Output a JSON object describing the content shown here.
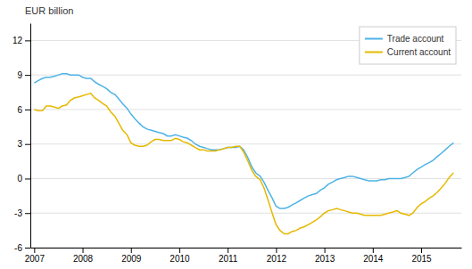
{
  "chart_data": {
    "type": "line",
    "ylabel": "EUR billion",
    "x": [
      2007.0,
      2007.08,
      2007.17,
      2007.25,
      2007.33,
      2007.42,
      2007.5,
      2007.58,
      2007.67,
      2007.75,
      2007.83,
      2007.92,
      2008.0,
      2008.08,
      2008.17,
      2008.25,
      2008.33,
      2008.42,
      2008.5,
      2008.58,
      2008.67,
      2008.75,
      2008.83,
      2008.92,
      2009.0,
      2009.08,
      2009.17,
      2009.25,
      2009.33,
      2009.42,
      2009.5,
      2009.58,
      2009.67,
      2009.75,
      2009.83,
      2009.92,
      2010.0,
      2010.08,
      2010.17,
      2010.25,
      2010.33,
      2010.42,
      2010.5,
      2010.58,
      2010.67,
      2010.75,
      2010.83,
      2010.92,
      2011.0,
      2011.08,
      2011.17,
      2011.25,
      2011.33,
      2011.42,
      2011.5,
      2011.58,
      2011.67,
      2011.75,
      2011.83,
      2011.92,
      2012.0,
      2012.08,
      2012.17,
      2012.25,
      2012.33,
      2012.42,
      2012.5,
      2012.58,
      2012.67,
      2012.75,
      2012.83,
      2012.92,
      2013.0,
      2013.08,
      2013.17,
      2013.25,
      2013.33,
      2013.42,
      2013.5,
      2013.58,
      2013.67,
      2013.75,
      2013.83,
      2013.92,
      2014.0,
      2014.08,
      2014.17,
      2014.25,
      2014.33,
      2014.42,
      2014.5,
      2014.58,
      2014.67,
      2014.75,
      2014.83,
      2014.92,
      2015.0,
      2015.08,
      2015.17,
      2015.25,
      2015.33,
      2015.42,
      2015.5,
      2015.58,
      2015.67
    ],
    "series": [
      {
        "name": "Trade account",
        "color": "#4db3e6",
        "values": [
          8.3,
          8.5,
          8.7,
          8.8,
          8.8,
          8.9,
          9.0,
          9.1,
          9.1,
          9.0,
          9.0,
          9.0,
          8.8,
          8.7,
          8.7,
          8.4,
          8.2,
          8.0,
          7.8,
          7.5,
          7.3,
          6.9,
          6.5,
          6.1,
          5.6,
          5.2,
          4.8,
          4.5,
          4.3,
          4.2,
          4.1,
          4.0,
          3.9,
          3.7,
          3.7,
          3.8,
          3.7,
          3.6,
          3.5,
          3.3,
          3.0,
          2.8,
          2.7,
          2.6,
          2.5,
          2.5,
          2.5,
          2.6,
          2.7,
          2.7,
          2.7,
          2.8,
          2.5,
          1.8,
          1.0,
          0.5,
          0.2,
          -0.3,
          -1.0,
          -1.7,
          -2.4,
          -2.6,
          -2.6,
          -2.5,
          -2.3,
          -2.1,
          -1.9,
          -1.7,
          -1.5,
          -1.4,
          -1.3,
          -1.0,
          -0.8,
          -0.5,
          -0.3,
          -0.1,
          0.0,
          0.1,
          0.2,
          0.2,
          0.1,
          0.0,
          -0.1,
          -0.2,
          -0.2,
          -0.2,
          -0.1,
          -0.1,
          0.0,
          0.0,
          0.0,
          0.0,
          0.1,
          0.2,
          0.5,
          0.8,
          1.0,
          1.2,
          1.4,
          1.6,
          1.9,
          2.2,
          2.5,
          2.8,
          3.1
        ]
      },
      {
        "name": "Current account",
        "color": "#e6b800",
        "values": [
          6.0,
          5.9,
          5.9,
          6.3,
          6.3,
          6.2,
          6.1,
          6.3,
          6.4,
          6.8,
          7.0,
          7.1,
          7.2,
          7.3,
          7.4,
          7.0,
          6.8,
          6.5,
          6.3,
          5.8,
          5.4,
          4.8,
          4.2,
          3.8,
          3.1,
          2.9,
          2.8,
          2.8,
          2.9,
          3.2,
          3.4,
          3.4,
          3.3,
          3.3,
          3.3,
          3.5,
          3.4,
          3.2,
          3.1,
          2.9,
          2.7,
          2.5,
          2.5,
          2.4,
          2.4,
          2.4,
          2.5,
          2.6,
          2.7,
          2.7,
          2.8,
          2.8,
          2.3,
          1.5,
          0.7,
          0.2,
          -0.1,
          -0.8,
          -1.8,
          -3.0,
          -4.0,
          -4.5,
          -4.8,
          -4.8,
          -4.6,
          -4.5,
          -4.3,
          -4.2,
          -4.0,
          -3.8,
          -3.6,
          -3.3,
          -3.0,
          -2.8,
          -2.7,
          -2.6,
          -2.7,
          -2.8,
          -2.9,
          -3.0,
          -3.0,
          -3.1,
          -3.2,
          -3.2,
          -3.2,
          -3.2,
          -3.2,
          -3.1,
          -3.0,
          -2.9,
          -2.8,
          -3.0,
          -3.1,
          -3.2,
          -3.0,
          -2.5,
          -2.2,
          -2.0,
          -1.7,
          -1.5,
          -1.2,
          -0.8,
          -0.4,
          0.1,
          0.5
        ]
      }
    ],
    "xlim": [
      2006.92,
      2015.83
    ],
    "xticks": [
      2007,
      2008,
      2009,
      2010,
      2011,
      2012,
      2013,
      2014,
      2015
    ],
    "ylim": [
      -6,
      13.5
    ],
    "yticks": [
      -6,
      -3,
      0,
      3,
      6,
      9,
      12
    ],
    "grid": true,
    "legend": "upper right"
  }
}
